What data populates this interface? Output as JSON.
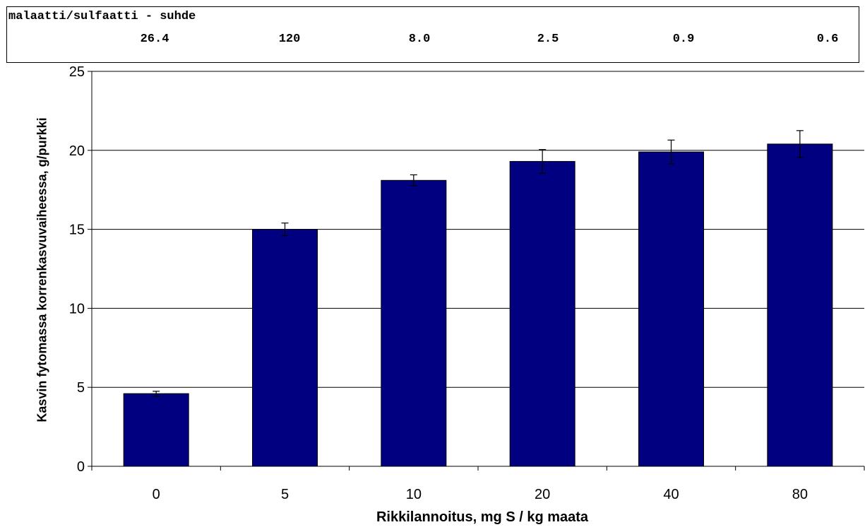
{
  "ratio_table": {
    "title": "malaatti/sulfaatti - suhde",
    "values": [
      "26.4",
      "120",
      "8.0",
      "2.5",
      "0.9",
      "0.6"
    ]
  },
  "chart_data": {
    "type": "bar",
    "title": "",
    "xlabel": "Rikkilannoitus, mg S / kg maata",
    "ylabel": "Kasvin fytomassa korrenkasvuvaiheessa, g/purkki",
    "categories": [
      "0",
      "5",
      "10",
      "20",
      "40",
      "80"
    ],
    "values": [
      4.6,
      15.0,
      18.1,
      19.3,
      19.9,
      20.4
    ],
    "error": [
      0.15,
      0.4,
      0.35,
      0.75,
      0.75,
      0.85
    ],
    "ylim": [
      0,
      25
    ],
    "yticks": [
      0,
      5,
      10,
      15,
      20,
      25
    ],
    "grid": true,
    "bar_color": "#000080",
    "error_bars": true
  }
}
